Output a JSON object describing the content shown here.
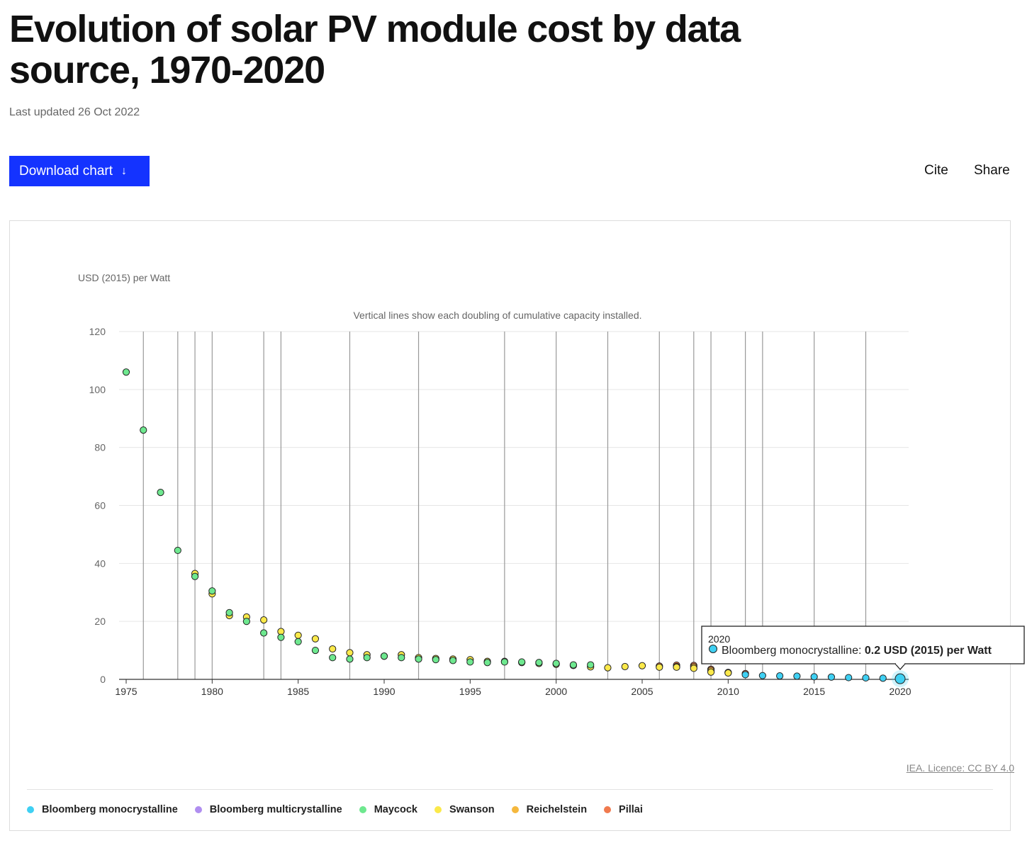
{
  "page": {
    "title": "Evolution of solar PV module cost by data source, 1970-2020",
    "updated": "Last updated 26 Oct 2022",
    "download_label": "Download chart",
    "download_icon": "arrow-down-icon",
    "cite_label": "Cite",
    "share_label": "Share",
    "licence": "IEA. Licence: CC BY 4.0"
  },
  "tooltip": {
    "year": "2020",
    "series": "Bloomberg monocrystalline:",
    "value": "0.2 USD (2015) per Watt"
  },
  "chart_data": {
    "type": "scatter",
    "title": "",
    "ylabel": "USD (2015) per Watt",
    "annotation": "Vertical lines show each doubling of cumulative capacity installed.",
    "xlim": [
      1975,
      2020
    ],
    "ylim": [
      0,
      120
    ],
    "x_ticks": [
      1975,
      1980,
      1985,
      1990,
      1995,
      2000,
      2005,
      2010,
      2015,
      2020
    ],
    "y_ticks": [
      0,
      20,
      40,
      60,
      80,
      100,
      120
    ],
    "grid": "horizontal",
    "legend_position": "bottom",
    "doubling_lines": [
      1976,
      1978,
      1979,
      1980,
      1983,
      1984,
      1988,
      1992,
      1997,
      2000,
      2003,
      2006,
      2008,
      2009,
      2011,
      2012,
      2015,
      2018
    ],
    "series": [
      {
        "name": "Pillai",
        "color": "#f07a4e",
        "points": [
          [
            2006,
            4.6
          ],
          [
            2007,
            4.9
          ],
          [
            2008,
            4.8
          ],
          [
            2009,
            3.5
          ],
          [
            2010,
            2.4
          ],
          [
            2011,
            2.0
          ]
        ]
      },
      {
        "name": "Reichelstein",
        "color": "#f5b83d",
        "points": [
          [
            2007,
            4.4
          ],
          [
            2008,
            4.3
          ],
          [
            2009,
            3.1
          ],
          [
            2010,
            2.3
          ]
        ]
      },
      {
        "name": "Swanson",
        "color": "#fbe94a",
        "points": [
          [
            1979,
            36.5
          ],
          [
            1980,
            29.5
          ],
          [
            1981,
            22
          ],
          [
            1982,
            21.5
          ],
          [
            1983,
            20.5
          ],
          [
            1984,
            16.5
          ],
          [
            1985,
            15.2
          ],
          [
            1986,
            14
          ],
          [
            1987,
            10.5
          ],
          [
            1988,
            9.2
          ],
          [
            1989,
            8.5
          ],
          [
            1990,
            8
          ],
          [
            1991,
            8.5
          ],
          [
            1992,
            7.5
          ],
          [
            1993,
            7.2
          ],
          [
            1994,
            7
          ],
          [
            1995,
            6.8
          ],
          [
            1996,
            6.2
          ],
          [
            1997,
            6.2
          ],
          [
            1998,
            5.8
          ],
          [
            1999,
            5.5
          ],
          [
            2000,
            5.2
          ],
          [
            2001,
            4.8
          ],
          [
            2002,
            4.3
          ],
          [
            2003,
            4
          ],
          [
            2004,
            4.4
          ],
          [
            2005,
            4.7
          ],
          [
            2006,
            4.2
          ],
          [
            2007,
            4.2
          ],
          [
            2008,
            3.8
          ],
          [
            2009,
            2.5
          ],
          [
            2010,
            2.2
          ]
        ]
      },
      {
        "name": "Maycock",
        "color": "#6ee88f",
        "points": [
          [
            1975,
            106
          ],
          [
            1976,
            86
          ],
          [
            1977,
            64.5
          ],
          [
            1978,
            44.5
          ],
          [
            1979,
            35.5
          ],
          [
            1980,
            30.5
          ],
          [
            1981,
            23
          ],
          [
            1982,
            20
          ],
          [
            1983,
            16
          ],
          [
            1984,
            14.5
          ],
          [
            1985,
            13
          ],
          [
            1986,
            10
          ],
          [
            1987,
            7.5
          ],
          [
            1988,
            7
          ],
          [
            1989,
            7.5
          ],
          [
            1990,
            8
          ],
          [
            1991,
            7.5
          ],
          [
            1992,
            7
          ],
          [
            1993,
            6.8
          ],
          [
            1994,
            6.5
          ],
          [
            1995,
            6
          ],
          [
            1996,
            5.8
          ],
          [
            1997,
            6
          ],
          [
            1998,
            6
          ],
          [
            1999,
            5.8
          ],
          [
            2000,
            5.5
          ],
          [
            2001,
            5
          ],
          [
            2002,
            5
          ]
        ]
      },
      {
        "name": "Bloomberg multicrystalline",
        "color": "#b08ef0",
        "points": []
      },
      {
        "name": "Bloomberg monocrystalline",
        "color": "#3fd0f3",
        "points": [
          [
            2011,
            1.6
          ],
          [
            2012,
            1.3
          ],
          [
            2013,
            1.2
          ],
          [
            2014,
            1.1
          ],
          [
            2015,
            0.9
          ],
          [
            2016,
            0.8
          ],
          [
            2017,
            0.6
          ],
          [
            2018,
            0.5
          ],
          [
            2019,
            0.4
          ],
          [
            2020,
            0.2
          ]
        ]
      }
    ],
    "legend": [
      {
        "name": "Bloomberg monocrystalline",
        "color": "#3fd0f3"
      },
      {
        "name": "Bloomberg multicrystalline",
        "color": "#b08ef0"
      },
      {
        "name": "Maycock",
        "color": "#6ee88f"
      },
      {
        "name": "Swanson",
        "color": "#fbe94a"
      },
      {
        "name": "Reichelstein",
        "color": "#f5b83d"
      },
      {
        "name": "Pillai",
        "color": "#f07a4e"
      }
    ]
  }
}
